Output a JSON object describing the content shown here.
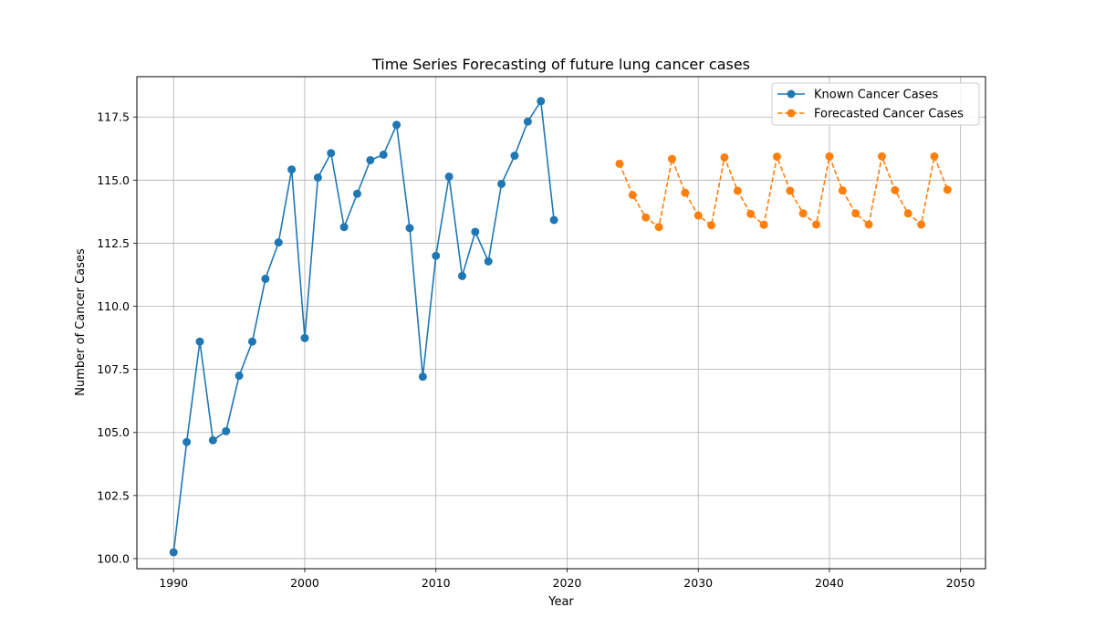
{
  "chart_data": {
    "type": "line",
    "title": "Time Series Forecasting of future lung cancer cases",
    "xlabel": "Year",
    "ylabel": "Number of Cancer Cases",
    "xlim": [
      1987.2,
      2051.9
    ],
    "ylim": [
      99.6,
      119.1
    ],
    "xticks": [
      1990,
      2000,
      2010,
      2020,
      2030,
      2040,
      2050
    ],
    "yticks": [
      100.0,
      102.5,
      105.0,
      107.5,
      110.0,
      112.5,
      115.0,
      117.5
    ],
    "xtick_labels": [
      "1990",
      "2000",
      "2010",
      "2020",
      "2030",
      "2040",
      "2050"
    ],
    "ytick_labels": [
      "100.0",
      "102.5",
      "105.0",
      "107.5",
      "110.0",
      "112.5",
      "115.0",
      "117.5"
    ],
    "grid": true,
    "legend_position": "top-right",
    "series": [
      {
        "name": "Known Cancer Cases",
        "color": "#1f77b4",
        "style": "solid",
        "x": [
          1990,
          1991,
          1992,
          1993,
          1994,
          1995,
          1996,
          1997,
          1998,
          1999,
          2000,
          2001,
          2002,
          2003,
          2004,
          2005,
          2006,
          2007,
          2008,
          2009,
          2010,
          2011,
          2012,
          2013,
          2014,
          2015,
          2016,
          2017,
          2018,
          2019
        ],
        "values": [
          100.25,
          104.62,
          108.6,
          104.69,
          105.05,
          107.25,
          108.6,
          111.09,
          112.53,
          115.42,
          108.74,
          115.1,
          116.07,
          113.14,
          114.46,
          115.79,
          116.01,
          117.19,
          113.1,
          107.21,
          112.0,
          115.14,
          111.2,
          112.95,
          111.78,
          114.85,
          115.97,
          117.32,
          118.13,
          113.42
        ]
      },
      {
        "name": "Forecasted Cancer Cases",
        "color": "#ff7f0e",
        "style": "dashed",
        "x": [
          2024,
          2025,
          2026,
          2027,
          2028,
          2029,
          2030,
          2031,
          2032,
          2033,
          2034,
          2035,
          2036,
          2037,
          2038,
          2039,
          2040,
          2041,
          2042,
          2043,
          2044,
          2045,
          2046,
          2047,
          2048,
          2049
        ],
        "values": [
          115.65,
          114.41,
          113.52,
          113.14,
          115.84,
          114.5,
          113.6,
          113.21,
          115.9,
          114.58,
          113.66,
          113.23,
          115.93,
          114.58,
          113.68,
          113.24,
          115.94,
          114.59,
          113.68,
          113.24,
          115.94,
          114.6,
          113.68,
          113.24,
          115.94,
          114.62
        ]
      }
    ]
  }
}
